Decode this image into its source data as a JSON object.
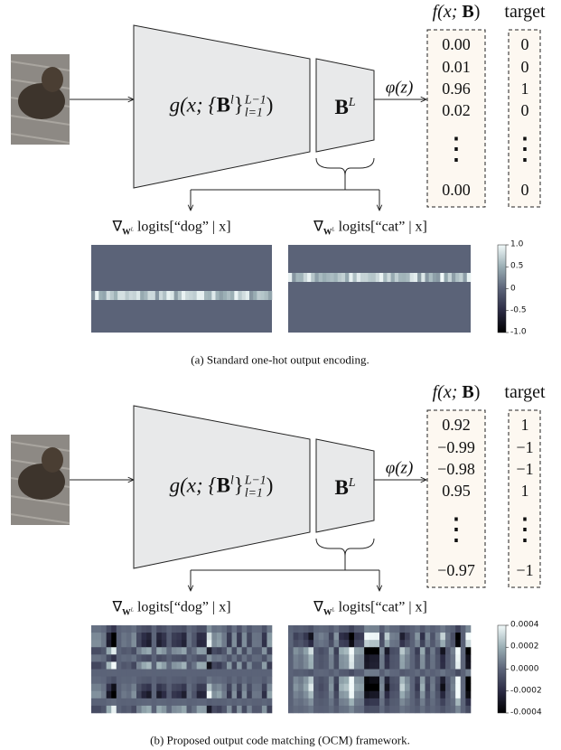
{
  "panels": [
    {
      "header": {
        "output": {
          "pre": "f(x; ",
          "B": "B",
          "end": ")"
        },
        "target": "target"
      },
      "network": {
        "g": {
          "pre": "g(x; {",
          "B": "B",
          "l": "l",
          "close": "}",
          "sub": "l=1",
          "sup": "L−1",
          "end": ")"
        },
        "last": {
          "B": "B",
          "L": "L"
        }
      },
      "activation": "φ(z)",
      "outputs": [
        "0.00",
        "0.01",
        "0.96",
        "0.02",
        "⋮",
        "0.00"
      ],
      "targets": [
        "0",
        "0",
        "1",
        "0",
        "⋮",
        "0"
      ],
      "gradients": [
        {
          "nabla": "∇",
          "W": "W",
          "L": "L",
          "text": " logits[“dog” | x]"
        },
        {
          "nabla": "∇",
          "W": "W",
          "L": "L",
          "text": " logits[“cat” | x]"
        }
      ],
      "colorbar": [
        "1.0",
        "0.5",
        "0",
        "-0.5",
        "-1.0"
      ],
      "caption": "(a) Standard one-hot output encoding."
    },
    {
      "header": {
        "output": {
          "pre": "f(x; ",
          "B": "B",
          "end": ")"
        },
        "target": "target"
      },
      "network": {
        "g": {
          "pre": "g(x; {",
          "B": "B",
          "l": "l",
          "close": "}",
          "sub": "l=1",
          "sup": "L−1",
          "end": ")"
        },
        "last": {
          "B": "B",
          "L": "L"
        }
      },
      "activation": "φ(z)",
      "outputs": [
        "0.92",
        "−0.99",
        "−0.98",
        "0.95",
        "⋮",
        "−0.97"
      ],
      "targets": [
        "1",
        "−1",
        "−1",
        "1",
        "⋮",
        "−1"
      ],
      "gradients": [
        {
          "nabla": "∇",
          "W": "W",
          "L": "L",
          "text": " logits[“dog” | x]"
        },
        {
          "nabla": "∇",
          "W": "W",
          "L": "L",
          "text": " logits[“cat” | x]"
        }
      ],
      "colorbar": [
        "0.0004",
        "0.0002",
        "0.0000",
        "-0.0002",
        "-0.0004"
      ],
      "caption": "(b) Proposed output code matching (OCM) framework."
    }
  ]
}
